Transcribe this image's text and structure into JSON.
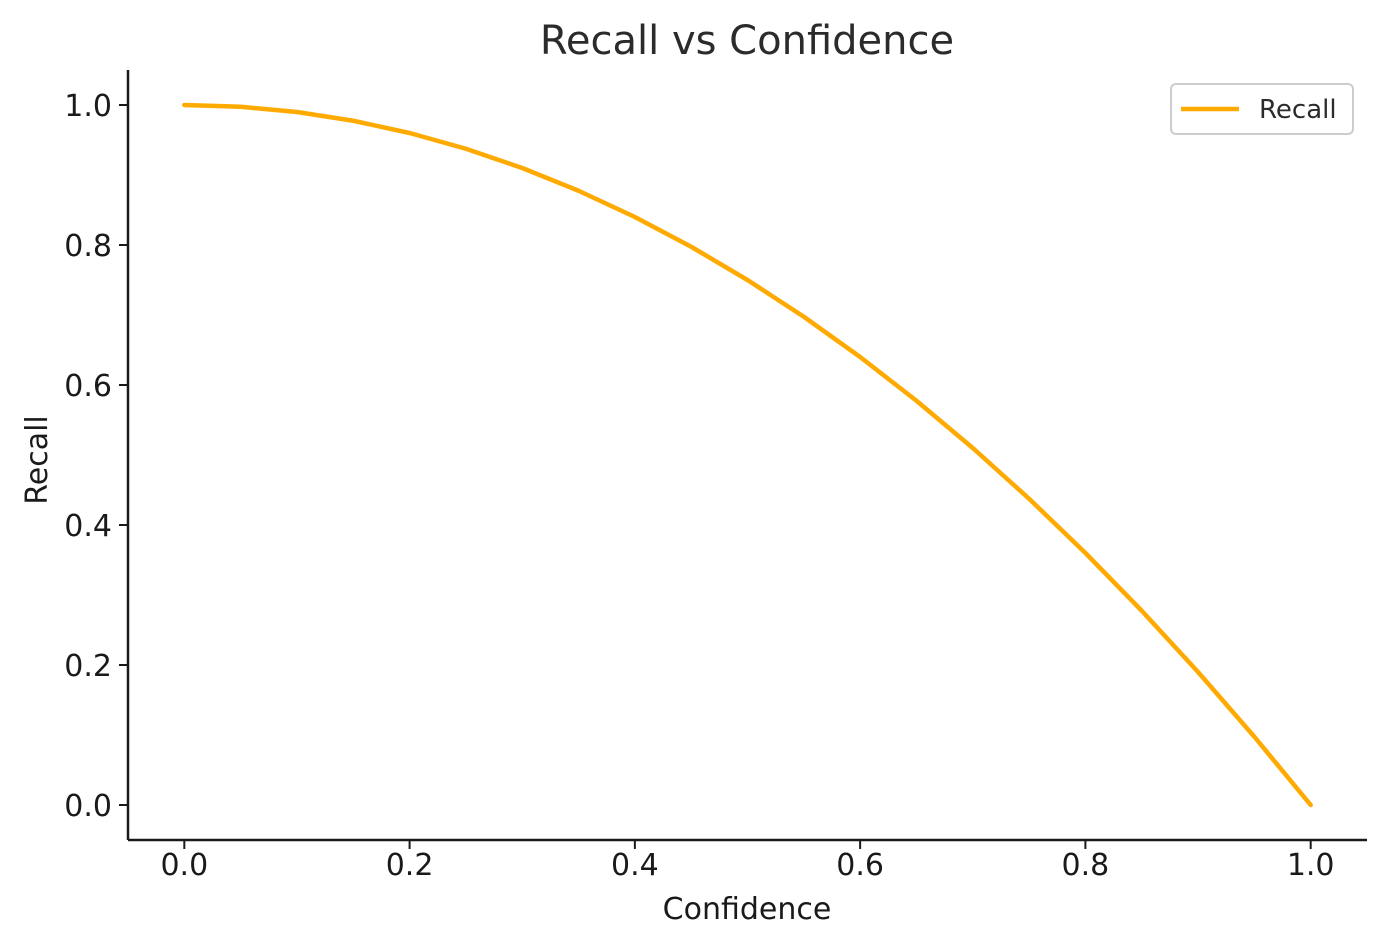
{
  "chart_data": {
    "type": "line",
    "title": "Recall vs Confidence",
    "xlabel": "Confidence",
    "ylabel": "Recall",
    "xlim": [
      -0.05,
      1.05
    ],
    "ylim": [
      -0.05,
      1.05
    ],
    "xticks": [
      0.0,
      0.2,
      0.4,
      0.6,
      0.8,
      1.0
    ],
    "xtick_labels": [
      "0.0",
      "0.2",
      "0.4",
      "0.6",
      "0.8",
      "1.0"
    ],
    "yticks": [
      0.0,
      0.2,
      0.4,
      0.6,
      0.8,
      1.0
    ],
    "ytick_labels": [
      "0.0",
      "0.2",
      "0.4",
      "0.6",
      "0.8",
      "1.0"
    ],
    "grid": false,
    "legend_position": "top-right",
    "series": [
      {
        "name": "Recall",
        "color": "#FFAA00",
        "x": [
          0.0,
          0.05,
          0.1,
          0.15,
          0.2,
          0.25,
          0.3,
          0.35,
          0.4,
          0.45,
          0.5,
          0.55,
          0.6,
          0.65,
          0.7,
          0.75,
          0.8,
          0.85,
          0.9,
          0.95,
          1.0
        ],
        "y": [
          1.0,
          0.9975,
          0.99,
          0.9775,
          0.96,
          0.9375,
          0.91,
          0.8775,
          0.84,
          0.7975,
          0.75,
          0.6975,
          0.64,
          0.5775,
          0.51,
          0.4375,
          0.36,
          0.2775,
          0.19,
          0.0975,
          0.0
        ]
      }
    ]
  }
}
